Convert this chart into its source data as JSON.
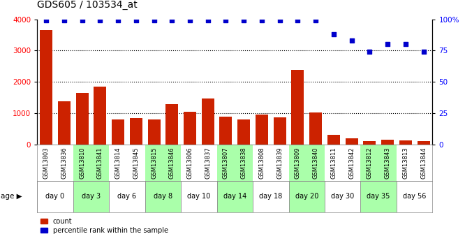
{
  "title": "GDS605 / 103534_at",
  "samples": [
    "GSM13803",
    "GSM13836",
    "GSM13810",
    "GSM13841",
    "GSM13814",
    "GSM13845",
    "GSM13815",
    "GSM13846",
    "GSM13806",
    "GSM13837",
    "GSM13807",
    "GSM13838",
    "GSM13808",
    "GSM13839",
    "GSM13809",
    "GSM13840",
    "GSM13811",
    "GSM13842",
    "GSM13812",
    "GSM13843",
    "GSM13813",
    "GSM13844"
  ],
  "counts": [
    3650,
    1380,
    1650,
    1840,
    800,
    840,
    800,
    1300,
    1040,
    1480,
    900,
    800,
    950,
    870,
    2380,
    1020,
    310,
    190,
    110,
    160,
    130,
    110
  ],
  "percentile": [
    99,
    99,
    99,
    99,
    99,
    99,
    99,
    99,
    99,
    99,
    99,
    99,
    99,
    99,
    99,
    99,
    88,
    83,
    74,
    80,
    80,
    74
  ],
  "age_groups": [
    {
      "label": "day 0",
      "indices": [
        0,
        1
      ],
      "color": "#ffffff"
    },
    {
      "label": "day 3",
      "indices": [
        2,
        3
      ],
      "color": "#aaffaa"
    },
    {
      "label": "day 6",
      "indices": [
        4,
        5
      ],
      "color": "#ffffff"
    },
    {
      "label": "day 8",
      "indices": [
        6,
        7
      ],
      "color": "#aaffaa"
    },
    {
      "label": "day 10",
      "indices": [
        8,
        9
      ],
      "color": "#ffffff"
    },
    {
      "label": "day 14",
      "indices": [
        10,
        11
      ],
      "color": "#aaffaa"
    },
    {
      "label": "day 18",
      "indices": [
        12,
        13
      ],
      "color": "#ffffff"
    },
    {
      "label": "day 20",
      "indices": [
        14,
        15
      ],
      "color": "#aaffaa"
    },
    {
      "label": "day 30",
      "indices": [
        16,
        17
      ],
      "color": "#ffffff"
    },
    {
      "label": "day 35",
      "indices": [
        18,
        19
      ],
      "color": "#aaffaa"
    },
    {
      "label": "day 56",
      "indices": [
        20,
        21
      ],
      "color": "#ffffff"
    }
  ],
  "sample_bg_color": "#d0d0d0",
  "age_bg_color": "#d0d0d0",
  "ylim_left": [
    0,
    4000
  ],
  "ylim_right": [
    0,
    100
  ],
  "yticks_left": [
    0,
    1000,
    2000,
    3000,
    4000
  ],
  "yticks_right": [
    0,
    25,
    50,
    75,
    100
  ],
  "ytick_right_labels": [
    "0",
    "25",
    "50",
    "75",
    "100%"
  ],
  "bar_color": "#cc2200",
  "dot_color": "#0000cc",
  "title_fontsize": 10,
  "sample_fontsize": 6,
  "age_fontsize": 7,
  "legend_label_count": "count",
  "legend_label_pct": "percentile rank within the sample",
  "age_label": "age",
  "plot_bg": "#ffffff"
}
